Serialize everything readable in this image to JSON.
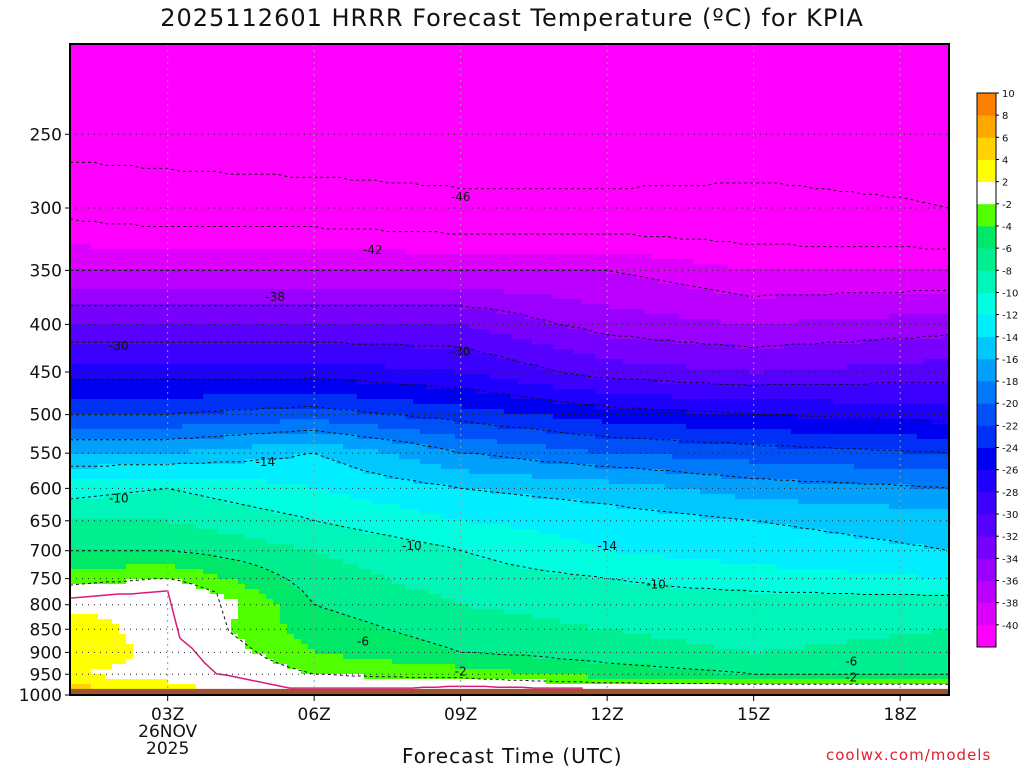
{
  "page": {
    "title": "2025112601 HRRR Forecast Temperature (ºC) for KPIA",
    "credit": "coolwx.com/models"
  },
  "colors": {
    "ground": "#a0522d",
    "frame": "#000000",
    "contour_line": "#111111",
    "freezing_line": "#d81b7a",
    "grid": "#9a9a9a"
  },
  "chart_data": {
    "type": "heatmap",
    "title": "2025112601 HRRR Forecast Temperature (ºC) for KPIA",
    "xlabel": "Forecast Time (UTC)",
    "ylabel": "",
    "x_unit": "forecast hour",
    "xlim": [
      1,
      19
    ],
    "ylim": [
      1000,
      200
    ],
    "y_scale": "log-pressure",
    "grid": true,
    "legend": "right (colorbar)",
    "x_ticks": [
      {
        "hour": 3,
        "label": "03Z",
        "date": "26NOV",
        "year": "2025"
      },
      {
        "hour": 6,
        "label": "06Z"
      },
      {
        "hour": 9,
        "label": "09Z"
      },
      {
        "hour": 12,
        "label": "12Z"
      },
      {
        "hour": 15,
        "label": "15Z"
      },
      {
        "hour": 18,
        "label": "18Z"
      }
    ],
    "y_ticks": [
      250,
      300,
      350,
      400,
      450,
      500,
      550,
      600,
      650,
      700,
      750,
      800,
      850,
      900,
      950,
      1000
    ],
    "surface_pressure": 985,
    "colorbar": {
      "levels": [
        -40,
        -38,
        -36,
        -34,
        -32,
        -30,
        -28,
        -26,
        -24,
        -22,
        -20,
        -18,
        -16,
        -14,
        -12,
        -10,
        -8,
        -6,
        -4,
        -2,
        2,
        4,
        6,
        8,
        10
      ],
      "colors": [
        "#ff00ff",
        "#dd00ff",
        "#bb00ff",
        "#9a00ff",
        "#7800ff",
        "#5600ff",
        "#3c00ff",
        "#1e00ff",
        "#0000f0",
        "#0030f5",
        "#0050f8",
        "#0078fa",
        "#00a0fc",
        "#00c8ff",
        "#00eeff",
        "#00ffe0",
        "#00f5b8",
        "#00ef90",
        "#00e868",
        "#50ff00",
        "#ffffff",
        "#ffff00",
        "#ffd200",
        "#ffa800",
        "#ff8000"
      ],
      "unit": "ºC"
    },
    "vertical_profiles": {
      "hours": [
        1,
        3,
        6,
        9,
        12,
        15,
        19
      ],
      "t1000": [
        6,
        4,
        0,
        2,
        2,
        2,
        2
      ],
      "t950": [
        2,
        1,
        -2,
        -3,
        -5,
        -6,
        -6
      ],
      "t900": [
        4,
        1,
        -4,
        -6,
        -7,
        -8,
        -7
      ],
      "t850": [
        4,
        0,
        -5,
        -7,
        -8,
        -9,
        -8
      ],
      "t800": [
        1,
        2,
        -6,
        -8,
        -9,
        -9,
        -9
      ],
      "t750": [
        -3,
        -2,
        -7,
        -9,
        -10,
        -11,
        -12
      ],
      "t700": [
        -6,
        -6,
        -8,
        -10,
        -12,
        -13,
        -14
      ],
      "t650": [
        -8,
        -8,
        -10,
        -12,
        -13,
        -14,
        -15
      ],
      "t600": [
        -11,
        -10,
        -12,
        -14,
        -15,
        -17,
        -18
      ],
      "t550": [
        -16,
        -16,
        -14,
        -18,
        -20,
        -21,
        -22
      ],
      "t500": [
        -22,
        -22,
        -21,
        -23,
        -25,
        -26,
        -27
      ],
      "t450": [
        -27,
        -27,
        -27,
        -28,
        -31,
        -32,
        -31
      ],
      "t400": [
        -32,
        -32,
        -32,
        -32,
        -35,
        -36,
        -35
      ],
      "t350": [
        -38,
        -38,
        -38,
        -38,
        -38,
        -40,
        -40
      ],
      "t300": [
        -43,
        -44,
        -44,
        -45,
        -45,
        -45,
        -46
      ],
      "t250": [
        -48,
        -48,
        -49,
        -49,
        -49,
        -48,
        -48
      ]
    },
    "contour_labels": [
      {
        "text": "-46",
        "hour": 9,
        "pressure": 292
      },
      {
        "text": "-42",
        "hour": 7.2,
        "pressure": 333
      },
      {
        "text": "-38",
        "hour": 5.2,
        "pressure": 374
      },
      {
        "text": "-30",
        "hour": 2.0,
        "pressure": 422
      },
      {
        "text": "-30",
        "hour": 9.0,
        "pressure": 428
      },
      {
        "text": "-14",
        "hour": 5.0,
        "pressure": 562
      },
      {
        "text": "-10",
        "hour": 2.0,
        "pressure": 615
      },
      {
        "text": "-10",
        "hour": 8.0,
        "pressure": 692
      },
      {
        "text": "-14",
        "hour": 12.0,
        "pressure": 692
      },
      {
        "text": "-10",
        "hour": 13.0,
        "pressure": 761
      },
      {
        "text": "-6",
        "hour": 7.0,
        "pressure": 876
      },
      {
        "text": "-2",
        "hour": 9.0,
        "pressure": 943
      },
      {
        "text": "-6",
        "hour": 17.0,
        "pressure": 920
      },
      {
        "text": "-2",
        "hour": 17.0,
        "pressure": 958
      }
    ]
  }
}
